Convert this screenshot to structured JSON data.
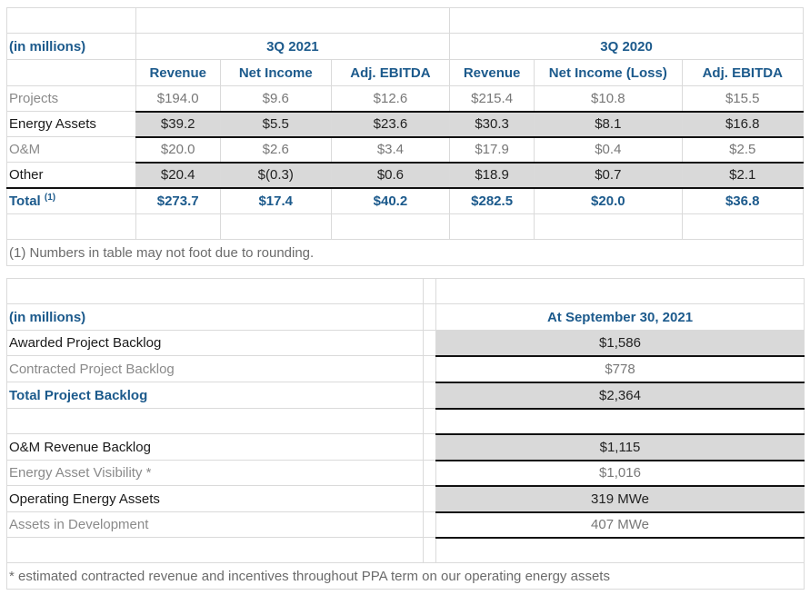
{
  "segment_table": {
    "unit_label": "(in millions)",
    "periods": [
      "3Q 2021",
      "3Q 2020"
    ],
    "columns_2021": [
      "Revenue",
      "Net Income",
      "Adj. EBITDA"
    ],
    "columns_2020": [
      "Revenue",
      "Net Income (Loss)",
      "Adj. EBITDA"
    ],
    "rows": [
      {
        "label": "Projects",
        "values": [
          "$194.0",
          "$9.6",
          "$12.6",
          "$215.4",
          "$10.8",
          "$15.5"
        ]
      },
      {
        "label": "Energy Assets",
        "values": [
          "$39.2",
          "$5.5",
          "$23.6",
          "$30.3",
          "$8.1",
          "$16.8"
        ]
      },
      {
        "label": "O&M",
        "values": [
          "$20.0",
          "$2.6",
          "$3.4",
          "$17.9",
          "$0.4",
          "$2.5"
        ]
      },
      {
        "label": "Other",
        "values": [
          "$20.4",
          "$(0.3)",
          "$0.6",
          "$18.9",
          "$0.7",
          "$2.1"
        ]
      }
    ],
    "total": {
      "label": "Total",
      "footnote_marker": "(1)",
      "values": [
        "$273.7",
        "$17.4",
        "$40.2",
        "$282.5",
        "$20.0",
        "$36.8"
      ]
    },
    "footnote": "(1) Numbers in table may not foot due to rounding."
  },
  "backlog_table": {
    "unit_label": "(in millions)",
    "column_header": "At September 30, 2021",
    "rows": [
      {
        "label": "Awarded Project Backlog",
        "value": "$1,586"
      },
      {
        "label": "Contracted Project Backlog",
        "value": "$778"
      },
      {
        "label": "Total Project Backlog",
        "value": "$2,364"
      },
      {
        "label": "O&M Revenue Backlog",
        "value": "$1,115"
      },
      {
        "label": "Energy Asset Visibility *",
        "value": "$1,016"
      },
      {
        "label": "Operating Energy Assets",
        "value": "319 MWe"
      },
      {
        "label": "Assets in Development",
        "value": "407 MWe"
      }
    ],
    "footnote": "* estimated contracted revenue and incentives throughout PPA term on our operating energy assets"
  }
}
